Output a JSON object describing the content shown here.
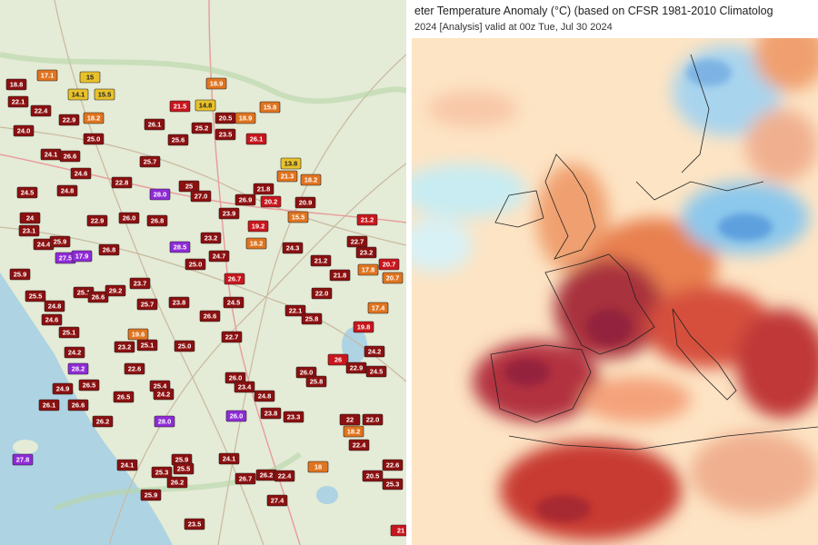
{
  "left_map": {
    "stations": [
      {
        "value": "18.8",
        "color": "#8b1010"
      },
      {
        "value": "22.1",
        "color": "#8b1010"
      },
      {
        "value": "17.1",
        "color": "#e07420"
      },
      {
        "value": "15",
        "color": "#e8c12a"
      },
      {
        "value": "14.1",
        "color": "#e8c12a"
      },
      {
        "value": "15.5",
        "color": "#e8c12a"
      },
      {
        "value": "18.9",
        "color": "#e07420"
      },
      {
        "value": "22.4",
        "color": "#8b1010"
      },
      {
        "value": "22.9",
        "color": "#8b1010"
      },
      {
        "value": "18.2",
        "color": "#e07420"
      },
      {
        "value": "14.8",
        "color": "#e8c12a"
      },
      {
        "value": "20.5",
        "color": "#8b1010"
      },
      {
        "value": "18.9",
        "color": "#e07420"
      },
      {
        "value": "15.8",
        "color": "#e07420"
      },
      {
        "value": "21.5",
        "color": "#c8161d"
      },
      {
        "value": "26.1",
        "color": "#8b1010"
      },
      {
        "value": "25.2",
        "color": "#8b1010"
      },
      {
        "value": "24.0",
        "color": "#8b1010"
      },
      {
        "value": "23.5",
        "color": "#8b1010"
      },
      {
        "value": "25.0",
        "color": "#8b1010"
      },
      {
        "value": "25.6",
        "color": "#8b1010"
      },
      {
        "value": "26.1",
        "color": "#c8161d"
      },
      {
        "value": "24.1",
        "color": "#8b1010"
      },
      {
        "value": "26.6",
        "color": "#8b1010"
      },
      {
        "value": "25.7",
        "color": "#8b1010"
      },
      {
        "value": "13.8",
        "color": "#e8c12a"
      },
      {
        "value": "24.6",
        "color": "#8b1010"
      },
      {
        "value": "21.3",
        "color": "#e07420"
      },
      {
        "value": "24.5",
        "color": "#8b1010"
      },
      {
        "value": "24.8",
        "color": "#8b1010"
      },
      {
        "value": "22.8",
        "color": "#8b1010"
      },
      {
        "value": "28.0",
        "color": "#8e2bd6"
      },
      {
        "value": "25",
        "color": "#8b1010"
      },
      {
        "value": "18.2",
        "color": "#e07420"
      },
      {
        "value": "21.8",
        "color": "#8b1010"
      },
      {
        "value": "27.0",
        "color": "#8b1010"
      },
      {
        "value": "26.9",
        "color": "#8b1010"
      },
      {
        "value": "20.9",
        "color": "#8b1010"
      },
      {
        "value": "20.2",
        "color": "#c8161d"
      },
      {
        "value": "24",
        "color": "#8b1010"
      },
      {
        "value": "23.1",
        "color": "#8b1010"
      },
      {
        "value": "22.9",
        "color": "#8b1010"
      },
      {
        "value": "26.0",
        "color": "#8b1010"
      },
      {
        "value": "26.8",
        "color": "#8b1010"
      },
      {
        "value": "15.5",
        "color": "#e07420"
      },
      {
        "value": "23.9",
        "color": "#8b1010"
      },
      {
        "value": "21.2",
        "color": "#c8161d"
      },
      {
        "value": "24.4",
        "color": "#8b1010"
      },
      {
        "value": "25.9",
        "color": "#8b1010"
      },
      {
        "value": "28.5",
        "color": "#8e2bd6"
      },
      {
        "value": "23.2",
        "color": "#8b1010"
      },
      {
        "value": "18.2",
        "color": "#e07420"
      },
      {
        "value": "19.2",
        "color": "#c8161d"
      },
      {
        "value": "26.8",
        "color": "#8b1010"
      },
      {
        "value": "24.3",
        "color": "#8b1010"
      },
      {
        "value": "22.7",
        "color": "#8b1010"
      },
      {
        "value": "23.2",
        "color": "#8b1010"
      },
      {
        "value": "27.5",
        "color": "#8e2bd6"
      },
      {
        "value": "17.9",
        "color": "#8e2bd6"
      },
      {
        "value": "25.0",
        "color": "#8b1010"
      },
      {
        "value": "24.7",
        "color": "#8b1010"
      },
      {
        "value": "17.8",
        "color": "#e07420"
      },
      {
        "value": "20.7",
        "color": "#c8161d"
      },
      {
        "value": "25.9",
        "color": "#8b1010"
      },
      {
        "value": "23.7",
        "color": "#8b1010"
      },
      {
        "value": "21.2",
        "color": "#8b1010"
      },
      {
        "value": "25.5",
        "color": "#8b1010"
      },
      {
        "value": "26.7",
        "color": "#c8161d"
      },
      {
        "value": "20.7",
        "color": "#e07420"
      },
      {
        "value": "25.1",
        "color": "#8b1010"
      },
      {
        "value": "26.6",
        "color": "#8b1010"
      },
      {
        "value": "29.2",
        "color": "#8b1010"
      },
      {
        "value": "25.7",
        "color": "#8b1010"
      },
      {
        "value": "23.8",
        "color": "#8b1010"
      },
      {
        "value": "24.5",
        "color": "#8b1010"
      },
      {
        "value": "22.0",
        "color": "#8b1010"
      },
      {
        "value": "21.8",
        "color": "#8b1010"
      },
      {
        "value": "24.8",
        "color": "#8b1010"
      },
      {
        "value": "24.6",
        "color": "#8b1010"
      },
      {
        "value": "22.1",
        "color": "#8b1010"
      },
      {
        "value": "25.8",
        "color": "#8b1010"
      },
      {
        "value": "26.6",
        "color": "#8b1010"
      },
      {
        "value": "17.4",
        "color": "#e07420"
      },
      {
        "value": "19.8",
        "color": "#c8161d"
      },
      {
        "value": "25.1",
        "color": "#8b1010"
      },
      {
        "value": "24.2",
        "color": "#8b1010"
      },
      {
        "value": "23.2",
        "color": "#8b1010"
      },
      {
        "value": "25.1",
        "color": "#8b1010"
      },
      {
        "value": "19.6",
        "color": "#e07420"
      },
      {
        "value": "25.0",
        "color": "#8b1010"
      },
      {
        "value": "22.7",
        "color": "#8b1010"
      },
      {
        "value": "24.2",
        "color": "#8b1010"
      },
      {
        "value": "26",
        "color": "#c8161d"
      },
      {
        "value": "22.9",
        "color": "#8b1010"
      },
      {
        "value": "24.5",
        "color": "#8b1010"
      },
      {
        "value": "28.2",
        "color": "#8e2bd6"
      },
      {
        "value": "22.6",
        "color": "#8b1010"
      },
      {
        "value": "24.9",
        "color": "#8b1010"
      },
      {
        "value": "26.5",
        "color": "#8b1010"
      },
      {
        "value": "25.4",
        "color": "#8b1010"
      },
      {
        "value": "26.0",
        "color": "#8b1010"
      },
      {
        "value": "26.0",
        "color": "#8b1010"
      },
      {
        "value": "25.8",
        "color": "#8b1010"
      },
      {
        "value": "24.2",
        "color": "#8b1010"
      },
      {
        "value": "26.5",
        "color": "#8b1010"
      },
      {
        "value": "23.4",
        "color": "#8b1010"
      },
      {
        "value": "24.8",
        "color": "#8b1010"
      },
      {
        "value": "26.1",
        "color": "#8b1010"
      },
      {
        "value": "26.6",
        "color": "#8b1010"
      },
      {
        "value": "26.2",
        "color": "#8b1010"
      },
      {
        "value": "28.0",
        "color": "#8e2bd6"
      },
      {
        "value": "26.0",
        "color": "#8e2bd6"
      },
      {
        "value": "23.8",
        "color": "#8b1010"
      },
      {
        "value": "23.3",
        "color": "#8b1010"
      },
      {
        "value": "22",
        "color": "#8b1010"
      },
      {
        "value": "22.0",
        "color": "#8b1010"
      },
      {
        "value": "18.2",
        "color": "#e07420"
      },
      {
        "value": "22.4",
        "color": "#8b1010"
      },
      {
        "value": "22.6",
        "color": "#8b1010"
      },
      {
        "value": "24.1",
        "color": "#8b1010"
      },
      {
        "value": "25.9",
        "color": "#8b1010"
      },
      {
        "value": "25.5",
        "color": "#8b1010"
      },
      {
        "value": "24.1",
        "color": "#8b1010"
      },
      {
        "value": "25.3",
        "color": "#8b1010"
      },
      {
        "value": "26.2",
        "color": "#8b1010"
      },
      {
        "value": "26.7",
        "color": "#8b1010"
      },
      {
        "value": "26.2",
        "color": "#8b1010"
      },
      {
        "value": "22.4",
        "color": "#8b1010"
      },
      {
        "value": "18",
        "color": "#e07420"
      },
      {
        "value": "27.8",
        "color": "#8e2bd6"
      },
      {
        "value": "20.5",
        "color": "#8b1010"
      },
      {
        "value": "25.9",
        "color": "#8b1010"
      },
      {
        "value": "27.4",
        "color": "#8b1010"
      },
      {
        "value": "25.3",
        "color": "#8b1010"
      },
      {
        "value": "23.5",
        "color": "#8b1010"
      },
      {
        "value": "21",
        "color": "#c8161d"
      }
    ]
  },
  "right_map": {
    "title": "eter Temperature Anomaly (°C) (based on CFSR 1981-2010 Climatolog",
    "subtitle": "2024  [Analysis]  valid at 00z Tue, Jul 30 2024"
  }
}
